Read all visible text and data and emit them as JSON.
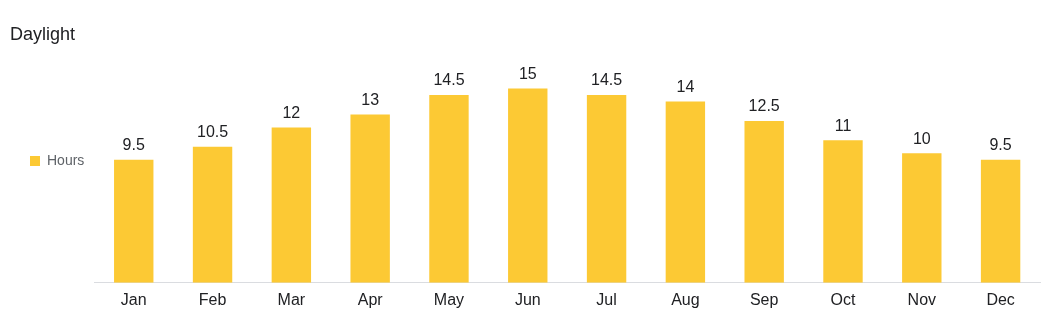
{
  "chart_data": {
    "type": "bar",
    "title": "Daylight",
    "categories": [
      "Jan",
      "Feb",
      "Mar",
      "Apr",
      "May",
      "Jun",
      "Jul",
      "Aug",
      "Sep",
      "Oct",
      "Nov",
      "Dec"
    ],
    "series": [
      {
        "name": "Hours",
        "color": "#fcc934",
        "values": [
          9.5,
          10.5,
          12,
          13,
          14.5,
          15,
          14.5,
          14,
          12.5,
          11,
          10,
          9.5
        ]
      }
    ],
    "data_labels": true,
    "legend": "left",
    "grid": false
  }
}
